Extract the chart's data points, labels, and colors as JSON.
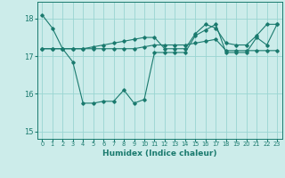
{
  "xlabel": "Humidex (Indice chaleur)",
  "background_color": "#ccecea",
  "grid_color": "#99d5d2",
  "line_color": "#1a7a6e",
  "xlim": [
    -0.5,
    23.5
  ],
  "ylim": [
    14.8,
    18.45
  ],
  "yticks": [
    15,
    16,
    17,
    18
  ],
  "xtick_labels": [
    "0",
    "1",
    "2",
    "3",
    "4",
    "5",
    "6",
    "7",
    "8",
    "9",
    "10",
    "11",
    "12",
    "13",
    "14",
    "15",
    "16",
    "17",
    "18",
    "19",
    "20",
    "21",
    "22",
    "23"
  ],
  "series": [
    [
      18.1,
      17.75,
      17.2,
      16.85,
      15.75,
      15.75,
      15.8,
      15.8,
      16.1,
      15.75,
      15.85,
      17.1,
      17.1,
      17.1,
      17.1,
      17.55,
      17.7,
      17.85,
      17.1,
      17.1,
      17.1,
      17.5,
      17.3,
      17.85
    ],
    [
      17.2,
      17.2,
      17.2,
      17.2,
      17.2,
      17.2,
      17.2,
      17.2,
      17.2,
      17.2,
      17.25,
      17.3,
      17.3,
      17.3,
      17.3,
      17.35,
      17.4,
      17.45,
      17.15,
      17.15,
      17.15,
      17.15,
      17.15,
      17.15
    ],
    [
      17.2,
      17.2,
      17.2,
      17.2,
      17.2,
      17.25,
      17.3,
      17.35,
      17.4,
      17.45,
      17.5,
      17.5,
      17.2,
      17.2,
      17.2,
      17.6,
      17.85,
      17.75,
      17.35,
      17.3,
      17.3,
      17.55,
      17.85,
      17.85
    ]
  ]
}
